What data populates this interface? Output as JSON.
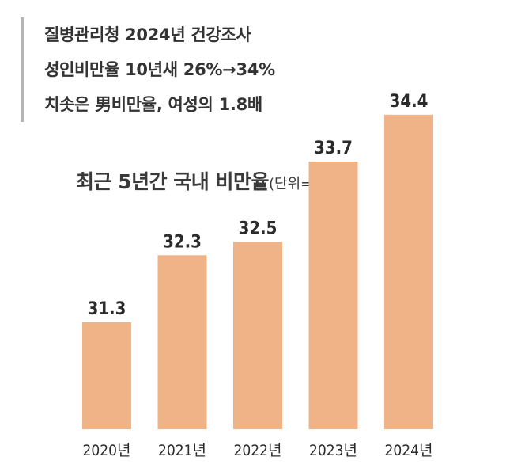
{
  "headline": {
    "lines": [
      "질병관리청 2024년 건강조사",
      "성인비만율 10년새 26%→34%",
      "치솟은 男비만율, 여성의 1.8배"
    ]
  },
  "colors": {
    "bar": "#f0b387",
    "text": "#2b2b2b",
    "quote_border": "#b5b5b5"
  },
  "chart_data": {
    "type": "bar",
    "title": "최근 5년간 국내 비만율",
    "unit": "(단위=%)",
    "categories": [
      "2020년",
      "2021년",
      "2022년",
      "2023년",
      "2024년"
    ],
    "values": [
      31.3,
      32.3,
      32.5,
      33.7,
      34.4
    ],
    "data_labels": [
      "31.3",
      "32.3",
      "32.5",
      "33.7",
      "34.4"
    ],
    "xlabel": "",
    "ylabel": "",
    "grid": false,
    "legend": "none"
  }
}
